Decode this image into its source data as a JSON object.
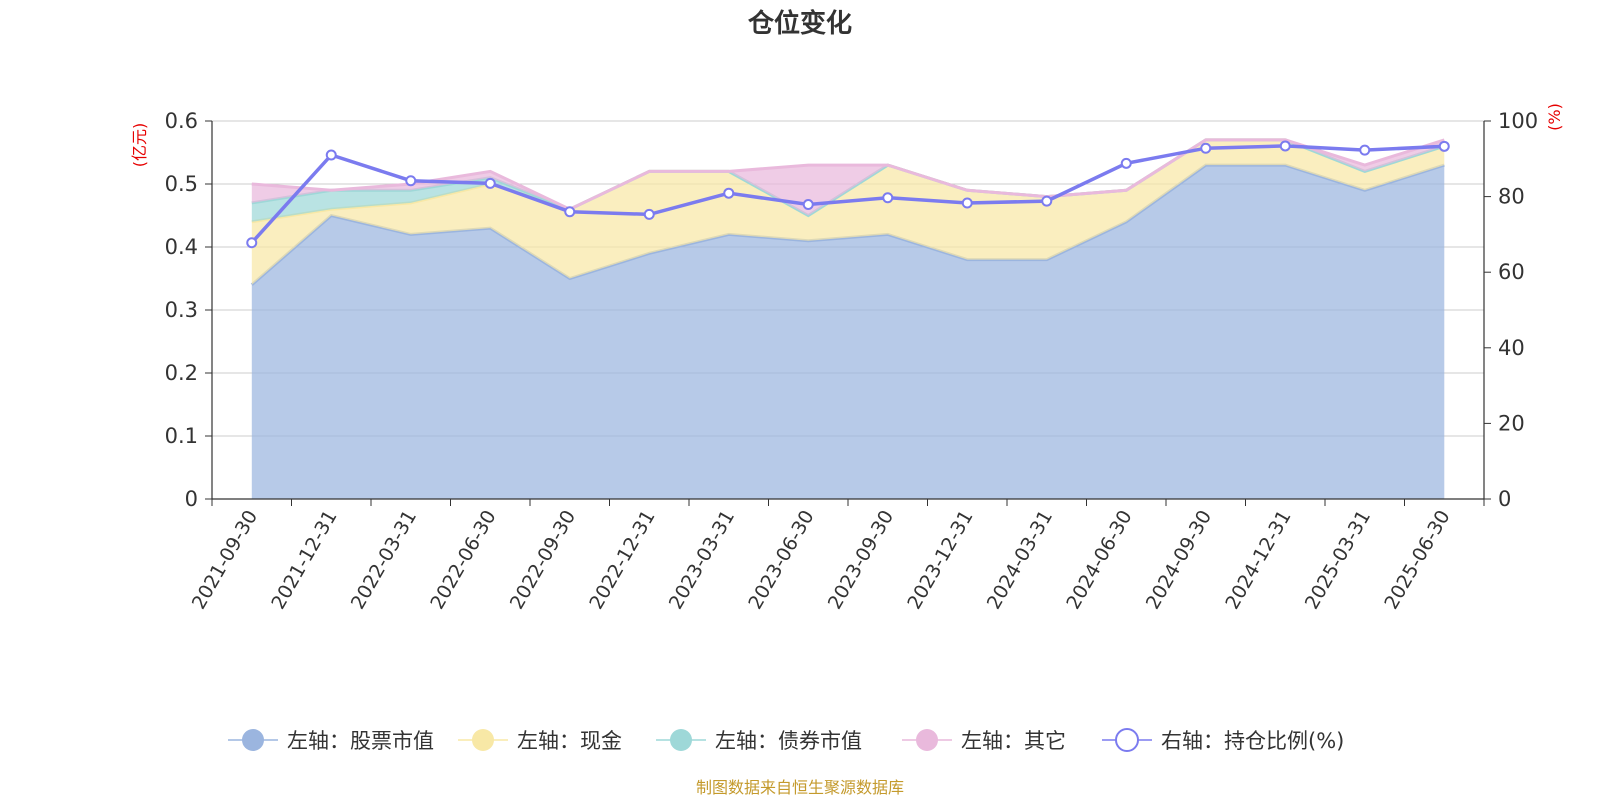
{
  "chart_data": {
    "type": "area",
    "title": "仓位变化",
    "x": [
      "2021-09-30",
      "2021-12-31",
      "2022-03-31",
      "2022-06-30",
      "2022-09-30",
      "2022-12-31",
      "2023-03-31",
      "2023-06-30",
      "2023-09-30",
      "2023-12-31",
      "2024-03-31",
      "2024-06-30",
      "2024-09-30",
      "2024-12-31",
      "2025-03-31",
      "2025-06-30"
    ],
    "left_axis": {
      "unit": "(亿元)",
      "ylim": [
        0,
        0.6
      ],
      "ticks": [
        "0",
        "0.1",
        "0.2",
        "0.3",
        "0.4",
        "0.5",
        "0.6"
      ]
    },
    "right_axis": {
      "unit": "(%)",
      "ylim": [
        0,
        100
      ],
      "ticks": [
        "0",
        "20",
        "40",
        "60",
        "80",
        "100"
      ]
    },
    "grid": true,
    "stacked": true,
    "series": [
      {
        "name": "左轴：股票市值",
        "axis": "left",
        "kind": "area",
        "color": "#9bb5df",
        "values": [
          0.34,
          0.45,
          0.42,
          0.43,
          0.35,
          0.39,
          0.42,
          0.41,
          0.42,
          0.38,
          0.38,
          0.44,
          0.53,
          0.53,
          0.49,
          0.53
        ]
      },
      {
        "name": "左轴：现金",
        "axis": "left",
        "kind": "area",
        "color": "#f8e8a6",
        "values": [
          0.1,
          0.01,
          0.05,
          0.07,
          0.11,
          0.13,
          0.1,
          0.04,
          0.11,
          0.11,
          0.1,
          0.05,
          0.04,
          0.04,
          0.03,
          0.03
        ]
      },
      {
        "name": "左轴：债券市值",
        "axis": "left",
        "kind": "area",
        "color": "#9ed8d8",
        "values": [
          0.03,
          0.03,
          0.02,
          0.01,
          0,
          0,
          0,
          0,
          0,
          0,
          0,
          0,
          0,
          0,
          0,
          0
        ]
      },
      {
        "name": "左轴：其它",
        "axis": "left",
        "kind": "area",
        "color": "#e9b9dc",
        "values": [
          0.03,
          0.0,
          0.01,
          0.01,
          0.0,
          0.0,
          0.0,
          0.08,
          0.0,
          0.0,
          0.0,
          0.0,
          0.0,
          0.0,
          0.01,
          0.01
        ]
      },
      {
        "name": "右轴：持仓比例(%)",
        "axis": "right",
        "kind": "line",
        "color": "#7b7bef",
        "values": [
          67.8,
          91.0,
          84.2,
          83.5,
          76.0,
          75.3,
          80.9,
          77.9,
          79.7,
          78.3,
          78.8,
          88.8,
          92.8,
          93.4,
          92.3,
          93.3
        ]
      }
    ],
    "legend_position": "bottom"
  },
  "source": "制图数据来自恒生聚源数据库",
  "colors": {
    "unit": "#e60000",
    "source": "#c49a2c",
    "axis": "#333333",
    "grid": "#cccccc"
  }
}
